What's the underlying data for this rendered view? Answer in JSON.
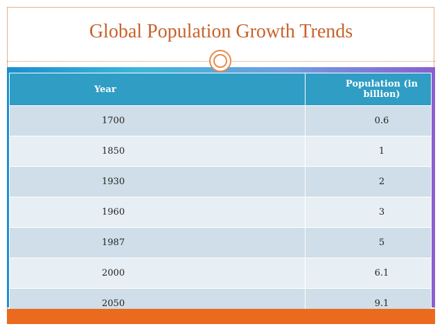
{
  "title": "Global Population Growth Trends",
  "table": {
    "headers": [
      "Year",
      "Population (in billion)"
    ],
    "rows": [
      [
        "1700",
        "0.6"
      ],
      [
        "1850",
        "1"
      ],
      [
        "1930",
        "2"
      ],
      [
        "1960",
        "3"
      ],
      [
        "1987",
        "5"
      ],
      [
        "2000",
        "6.1"
      ],
      [
        "2050",
        "9.1"
      ]
    ]
  },
  "colors": {
    "title": "#c8622b",
    "header": "#2f9dc4",
    "accent_bar": "#ea6a1e"
  }
}
